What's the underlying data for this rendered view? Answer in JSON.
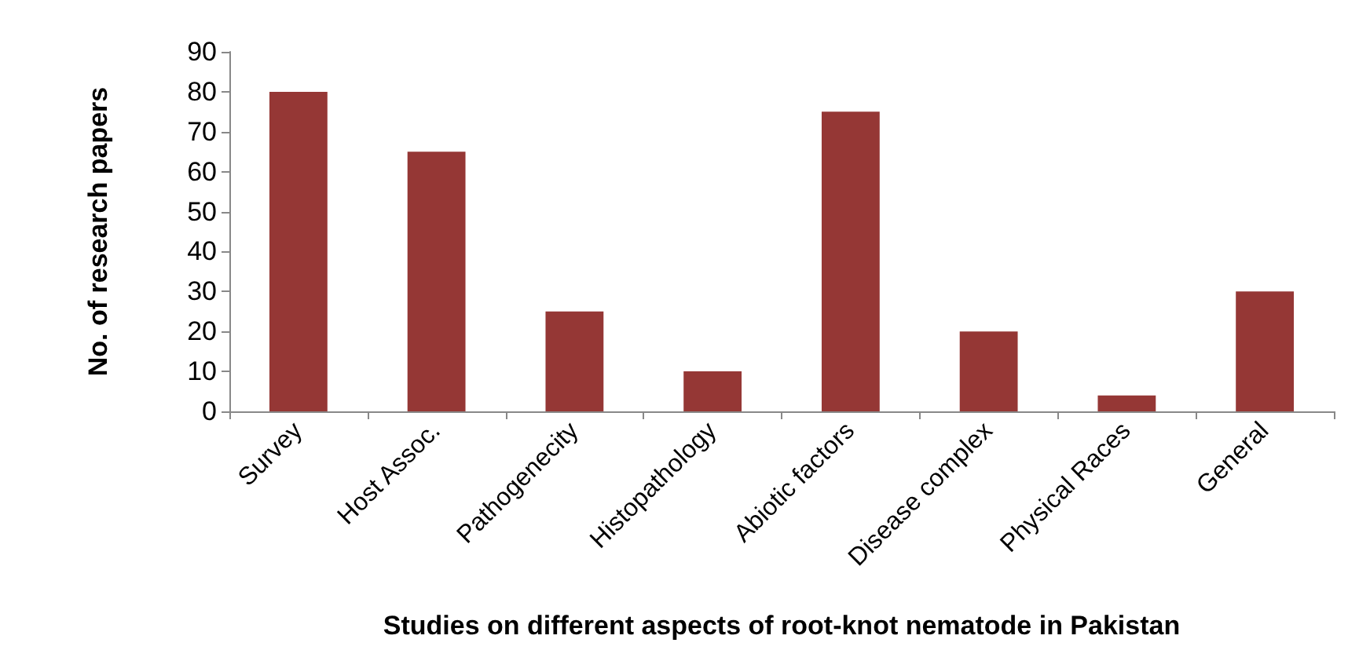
{
  "chart_data": {
    "type": "bar",
    "xlabel": "Studies on different aspects of root-knot nematode in Pakistan",
    "ylabel": "No. of research papers",
    "categories": [
      "Survey",
      "Host Assoc.",
      "Pathogenecity",
      "Histopathology",
      "Abiotic factors",
      "Disease complex",
      "Physical Races",
      "General"
    ],
    "values": [
      80,
      65,
      25,
      10,
      75,
      20,
      4,
      30
    ],
    "color": "#953735",
    "ylim": [
      0,
      90
    ],
    "yticks": [
      0,
      10,
      20,
      30,
      40,
      50,
      60,
      70,
      80,
      90
    ],
    "grid": false
  }
}
